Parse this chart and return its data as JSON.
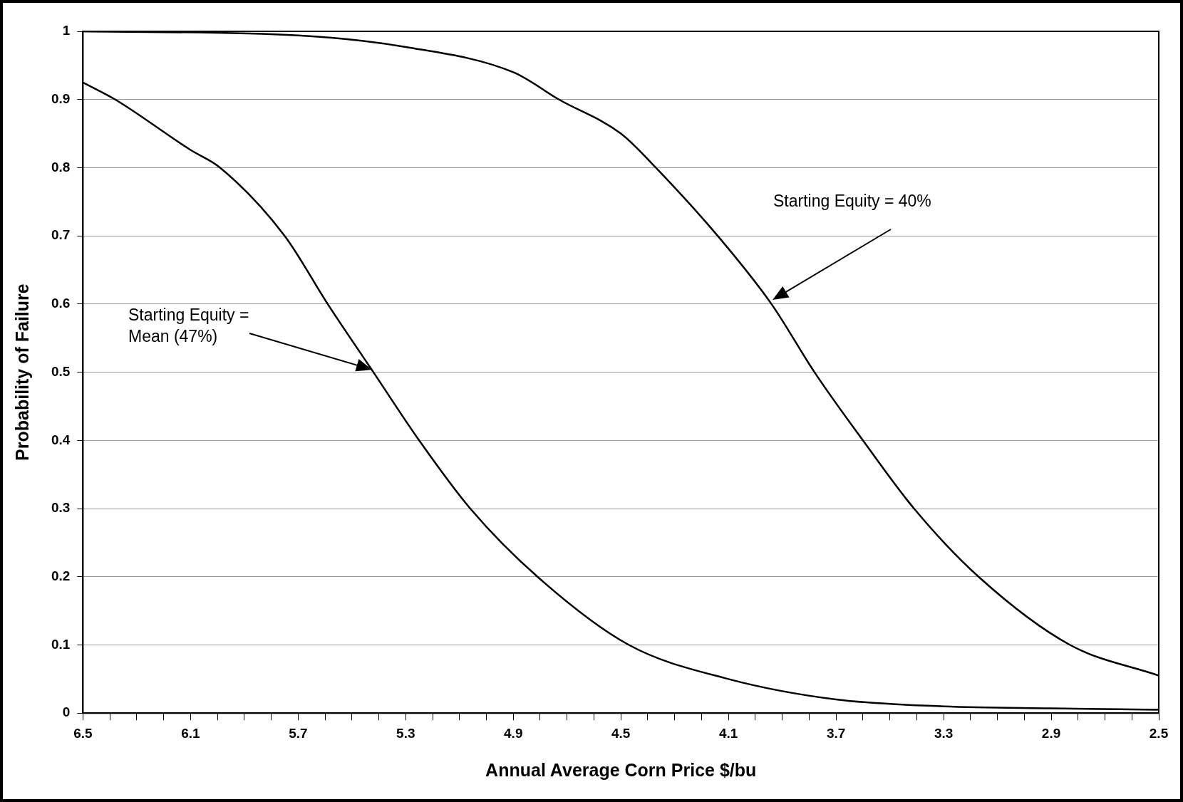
{
  "chart_data": {
    "type": "line",
    "xlabel": "Annual Average Corn Price $/bu",
    "ylabel": "Probability of Failure",
    "xlim": [
      6.5,
      2.5
    ],
    "xticks": [
      6.5,
      {
        "value": 6.4,
        "label": null
      },
      {
        "value": 6.3,
        "label": null
      },
      {
        "value": 6.2,
        "label": null
      },
      6.1,
      {
        "value": 6.0,
        "label": null
      },
      {
        "value": 5.9,
        "label": null
      },
      {
        "value": 5.8,
        "label": null
      },
      5.7,
      {
        "value": 5.6,
        "label": null
      },
      {
        "value": 5.5,
        "label": null
      },
      {
        "value": 5.4,
        "label": null
      },
      5.3,
      {
        "value": 5.2,
        "label": null
      },
      {
        "value": 5.1,
        "label": null
      },
      {
        "value": 5.0,
        "label": null
      },
      4.9,
      {
        "value": 4.8,
        "label": null
      },
      {
        "value": 4.7,
        "label": null
      },
      {
        "value": 4.6,
        "label": null
      },
      4.5,
      {
        "value": 4.4,
        "label": null
      },
      {
        "value": 4.3,
        "label": null
      },
      {
        "value": 4.2,
        "label": null
      },
      4.1,
      {
        "value": 4.0,
        "label": null
      },
      {
        "value": 3.9,
        "label": null
      },
      {
        "value": 3.8,
        "label": null
      },
      3.7,
      {
        "value": 3.6,
        "label": null
      },
      {
        "value": 3.5,
        "label": null
      },
      {
        "value": 3.4,
        "label": null
      },
      3.3,
      {
        "value": 3.2,
        "label": null
      },
      {
        "value": 3.1,
        "label": null
      },
      {
        "value": 3.0,
        "label": null
      },
      2.9,
      {
        "value": 2.8,
        "label": null
      },
      {
        "value": 2.7,
        "label": null
      },
      {
        "value": 2.6,
        "label": null
      },
      2.5
    ],
    "ylim": [
      0,
      1
    ],
    "yticks": [
      0,
      0.1,
      0.2,
      0.3,
      0.4,
      0.5,
      0.6,
      0.7,
      0.8,
      0.9,
      1
    ],
    "grid": "y",
    "legend": false,
    "marker": "none",
    "line_style": "solid",
    "series": [
      {
        "color": "#000000",
        "x": [
          6.5,
          6.38,
          6.1,
          5.99,
          5.75,
          5.59,
          5.42,
          5.25,
          5.06,
          4.81,
          4.47,
          4.1,
          3.7,
          3.3,
          2.9,
          2.5
        ],
        "values": [
          0.925,
          0.9,
          0.826,
          0.8,
          0.7,
          0.6,
          0.5,
          0.4,
          0.3,
          0.2,
          0.1,
          0.05,
          0.02,
          0.01,
          0.007,
          0.005
        ]
      },
      {
        "color": "#000000",
        "x": [
          6.5,
          5.7,
          5.3,
          4.9,
          4.73,
          4.5,
          4.37,
          4.14,
          3.94,
          3.78,
          3.6,
          3.41,
          3.17,
          2.83,
          2.5
        ],
        "values": [
          1.0,
          0.994,
          0.977,
          0.94,
          0.9,
          0.85,
          0.8,
          0.7,
          0.6,
          0.5,
          0.4,
          0.3,
          0.2,
          0.1,
          0.055
        ]
      }
    ],
    "annotations": [
      "Starting Equity = 40%",
      "Starting Equity =\nMean (47%)"
    ]
  }
}
